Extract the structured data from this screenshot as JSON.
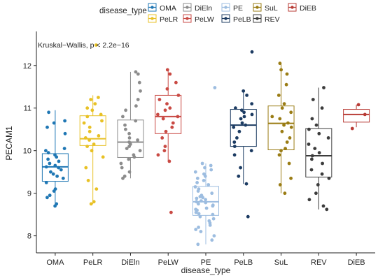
{
  "chart_data": {
    "type": "boxplot",
    "xlabel": "disease_type",
    "ylabel": "PECAM1",
    "annotation": "Kruskal−Wallis, p < 2.2e−16",
    "legend": {
      "title": "disease_type",
      "placement": "top",
      "entries": [
        "OMA",
        "DiEln",
        "PE",
        "SuL",
        "DiEB",
        "PeLR",
        "PeLW",
        "PeLB",
        "REV"
      ]
    },
    "ylim": [
      7.6,
      12.8
    ],
    "yticks": [
      8,
      9,
      10,
      11,
      12
    ],
    "categories": [
      "OMA",
      "PeLR",
      "DiEln",
      "PeLW",
      "PE",
      "PeLB",
      "SuL",
      "REV",
      "DiEB"
    ],
    "colors": {
      "OMA": "#1f77b4",
      "PeLR": "#e8c125",
      "DiEln": "#8c8c8c",
      "PeLW": "#c94a44",
      "PE": "#9dbde0",
      "PeLB": "#1c3b62",
      "SuL": "#9a7c14",
      "REV": "#3c3c3c",
      "DiEB": "#b83b35"
    },
    "boxes": [
      {
        "name": "OMA",
        "min": 8.7,
        "q1": 9.28,
        "median": 9.62,
        "q3": 9.93,
        "max": 10.95
      },
      {
        "name": "PeLR",
        "min": 8.75,
        "q1": 10.12,
        "median": 10.28,
        "q3": 10.82,
        "max": 11.3
      },
      {
        "name": "DiEln",
        "min": 9.35,
        "q1": 9.84,
        "median": 10.2,
        "q3": 10.72,
        "max": 11.85
      },
      {
        "name": "PeLW",
        "min": 9.75,
        "q1": 10.4,
        "median": 10.8,
        "q3": 11.3,
        "max": 11.92
      },
      {
        "name": "PE",
        "min": 7.8,
        "q1": 8.48,
        "median": 8.8,
        "q3": 9.16,
        "max": 9.7
      },
      {
        "name": "PeLB",
        "min": 9.22,
        "q1": 10.1,
        "median": 10.6,
        "q3": 10.97,
        "max": 11.4
      },
      {
        "name": "SuL",
        "min": 9.0,
        "q1": 10.02,
        "median": 10.64,
        "q3": 11.05,
        "max": 12.05
      },
      {
        "name": "REV",
        "min": 8.62,
        "q1": 9.38,
        "median": 9.88,
        "q3": 10.52,
        "max": 11.48
      },
      {
        "name": "DiEB",
        "min": 10.55,
        "q1": 10.67,
        "median": 10.85,
        "q3": 10.97,
        "max": 11.08
      }
    ],
    "points": {
      "OMA": [
        8.7,
        8.75,
        8.9,
        8.95,
        9.05,
        9.1,
        9.25,
        9.35,
        9.4,
        9.45,
        9.5,
        9.55,
        9.6,
        9.62,
        9.65,
        9.7,
        9.75,
        9.8,
        9.85,
        9.9,
        9.95,
        10.0,
        10.05,
        10.4,
        10.55,
        10.65,
        10.7,
        10.9
      ],
      "PeLR": [
        8.75,
        8.8,
        9.1,
        9.3,
        9.6,
        9.85,
        10.0,
        10.1,
        10.15,
        10.25,
        10.3,
        10.35,
        10.45,
        10.55,
        10.65,
        10.7,
        10.8,
        10.85,
        10.95,
        11.0,
        11.1,
        11.2,
        11.25,
        12.48
      ],
      "DiEln": [
        9.35,
        9.4,
        9.5,
        9.6,
        9.7,
        9.8,
        9.85,
        9.9,
        10.0,
        10.05,
        10.1,
        10.15,
        10.2,
        10.25,
        10.3,
        10.4,
        10.5,
        10.6,
        10.7,
        10.8,
        10.95,
        11.05,
        11.2,
        11.4,
        11.6,
        11.8,
        11.85
      ],
      "PeLW": [
        8.55,
        9.75,
        9.9,
        10.0,
        10.1,
        10.3,
        10.45,
        10.55,
        10.65,
        10.75,
        10.8,
        10.85,
        10.95,
        11.0,
        11.1,
        11.2,
        11.3,
        11.45,
        11.6,
        11.8,
        11.9
      ],
      "PE": [
        7.8,
        7.9,
        8.0,
        8.1,
        8.15,
        8.2,
        8.25,
        8.3,
        8.35,
        8.4,
        8.45,
        8.5,
        8.52,
        8.55,
        8.6,
        8.62,
        8.65,
        8.7,
        8.72,
        8.75,
        8.78,
        8.8,
        8.82,
        8.85,
        8.88,
        8.9,
        8.92,
        8.95,
        9.0,
        9.05,
        9.1,
        9.15,
        9.2,
        9.25,
        9.3,
        9.35,
        9.4,
        9.45,
        9.5,
        9.55,
        9.6,
        9.65,
        9.7,
        11.48
      ],
      "PeLB": [
        8.45,
        9.22,
        9.4,
        9.6,
        9.9,
        10.0,
        10.1,
        10.2,
        10.3,
        10.45,
        10.55,
        10.6,
        10.65,
        10.75,
        10.8,
        10.85,
        10.9,
        10.95,
        11.0,
        11.1,
        11.3,
        11.4,
        12.32
      ],
      "SuL": [
        9.0,
        9.2,
        9.35,
        9.7,
        9.9,
        10.0,
        10.05,
        10.2,
        10.3,
        10.45,
        10.55,
        10.6,
        10.65,
        10.75,
        10.8,
        10.9,
        11.0,
        11.1,
        11.3,
        11.55,
        11.8,
        11.9,
        12.05
      ],
      "REV": [
        8.62,
        8.7,
        8.85,
        9.0,
        9.2,
        9.35,
        9.45,
        9.55,
        9.7,
        9.8,
        9.88,
        9.95,
        10.05,
        10.15,
        10.3,
        10.4,
        10.5,
        10.6,
        10.75,
        11.0,
        11.2,
        11.48
      ],
      "DiEB": [
        10.52,
        10.85,
        11.08
      ]
    }
  }
}
